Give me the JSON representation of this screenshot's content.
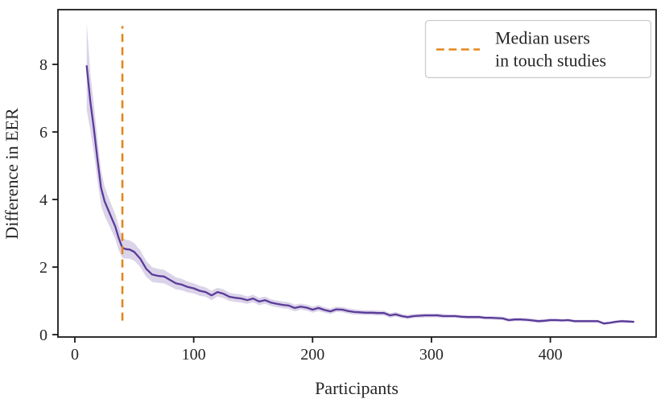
{
  "chart_data": {
    "type": "line",
    "title": "",
    "xlabel": "Participants",
    "ylabel": "Difference in EER",
    "xlim": [
      -14.2,
      489
    ],
    "ylim": [
      -0.07,
      9.62
    ],
    "x_ticks": [
      0,
      100,
      200,
      300,
      400
    ],
    "y_ticks": [
      0,
      2,
      4,
      6,
      8
    ],
    "grid": false,
    "legend": {
      "position": "upper right",
      "entries": [
        {
          "label": "Median users in touch studies",
          "line1": "Median users",
          "line2": "in touch studies",
          "style": "dashed",
          "color": "#e2861c"
        }
      ]
    },
    "series": [
      {
        "name": "Difference in EER",
        "color": "#5b3b99",
        "band_color": "#5b3b99",
        "band_opacity": 0.22,
        "x": [
          10,
          13,
          16,
          19,
          22,
          25,
          28,
          31,
          34,
          37,
          40,
          43,
          46,
          50,
          55,
          60,
          65,
          70,
          75,
          80,
          85,
          90,
          95,
          100,
          105,
          110,
          115,
          120,
          125,
          130,
          135,
          140,
          145,
          150,
          155,
          160,
          165,
          170,
          175,
          180,
          185,
          190,
          195,
          200,
          205,
          210,
          215,
          220,
          225,
          230,
          235,
          240,
          245,
          250,
          255,
          260,
          265,
          270,
          275,
          280,
          285,
          290,
          295,
          300,
          305,
          310,
          315,
          320,
          325,
          330,
          335,
          340,
          345,
          350,
          355,
          360,
          365,
          370,
          375,
          380,
          385,
          390,
          395,
          400,
          405,
          410,
          415,
          420,
          425,
          430,
          435,
          440,
          445,
          450,
          455,
          460,
          465,
          470
        ],
        "y": [
          7.95,
          6.9,
          6.1,
          5.2,
          4.35,
          3.95,
          3.7,
          3.45,
          3.2,
          2.85,
          2.57,
          2.53,
          2.52,
          2.45,
          2.25,
          1.95,
          1.78,
          1.74,
          1.72,
          1.62,
          1.52,
          1.48,
          1.41,
          1.37,
          1.3,
          1.26,
          1.16,
          1.26,
          1.21,
          1.12,
          1.09,
          1.07,
          1.02,
          1.07,
          0.98,
          1.02,
          0.95,
          0.91,
          0.88,
          0.86,
          0.79,
          0.83,
          0.8,
          0.74,
          0.79,
          0.73,
          0.69,
          0.75,
          0.74,
          0.7,
          0.67,
          0.66,
          0.65,
          0.65,
          0.64,
          0.64,
          0.57,
          0.6,
          0.55,
          0.52,
          0.55,
          0.56,
          0.57,
          0.57,
          0.57,
          0.55,
          0.55,
          0.55,
          0.53,
          0.52,
          0.52,
          0.52,
          0.5,
          0.5,
          0.49,
          0.48,
          0.43,
          0.45,
          0.45,
          0.44,
          0.42,
          0.4,
          0.41,
          0.43,
          0.43,
          0.42,
          0.43,
          0.4,
          0.4,
          0.4,
          0.4,
          0.4,
          0.33,
          0.35,
          0.38,
          0.4,
          0.39,
          0.38
        ],
        "ci_halfwidth": [
          1.3,
          0.85,
          0.72,
          0.62,
          0.52,
          0.44,
          0.4,
          0.38,
          0.37,
          0.36,
          0.3,
          0.28,
          0.27,
          0.26,
          0.25,
          0.24,
          0.22,
          0.21,
          0.2,
          0.19,
          0.18,
          0.17,
          0.16,
          0.15,
          0.15,
          0.14,
          0.14,
          0.13,
          0.13,
          0.12,
          0.12,
          0.12,
          0.11,
          0.11,
          0.11,
          0.11,
          0.1,
          0.1,
          0.1,
          0.1,
          0.1,
          0.09,
          0.09,
          0.09,
          0.09,
          0.08,
          0.08,
          0.08,
          0.08,
          0.08,
          0.08,
          0.07,
          0.07,
          0.07,
          0.07,
          0.07,
          0.07,
          0.07,
          0.06,
          0.06,
          0.06,
          0.06,
          0.06,
          0.06,
          0.06,
          0.06,
          0.05,
          0.05,
          0.05,
          0.05,
          0.05,
          0.05,
          0.05,
          0.05,
          0.05,
          0.05,
          0.05,
          0.05,
          0.05,
          0.05,
          0.05,
          0.05,
          0.05,
          0.05,
          0.05,
          0.04,
          0.04,
          0.04,
          0.04,
          0.04,
          0.04,
          0.04,
          0.04,
          0.04,
          0.04,
          0.04,
          0.04,
          0.04
        ]
      }
    ],
    "annotations": [
      {
        "type": "vline",
        "x": 40,
        "color": "#e2861c",
        "style": "dashed",
        "span_frac": [
          0.05,
          0.95
        ]
      }
    ]
  },
  "colors": {
    "line": "#5b3b99",
    "band": "#5b3b99",
    "vline": "#e2861c",
    "spine": "#1a1a1a",
    "text": "#262626",
    "legend_border": "#cccccc",
    "background": "#ffffff"
  },
  "legend": {
    "line1": "Median users",
    "line2": "in touch studies"
  }
}
